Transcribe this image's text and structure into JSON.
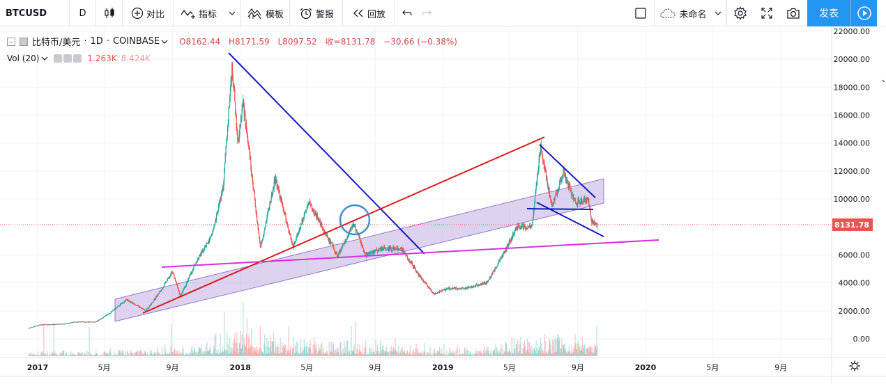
{
  "toolbar": {
    "symbol": "BTCUSD",
    "interval": "D",
    "compare_label": "对比",
    "indicators_label": "指标",
    "templates_label": "模板",
    "alert_label": "警报",
    "replay_label": "回放",
    "layout_name": "未命名",
    "publish_label": "发表"
  },
  "legend": {
    "title": "比特币/美元",
    "interval": "1D",
    "exchange": "COINBASE",
    "open": "O8162.44",
    "high": "H8171.59",
    "low": "L8097.52",
    "close": "收=8131.78",
    "change": "−30.66 (−0.38%)",
    "vol_label": "Vol (20)",
    "vol_value1": "1.263K",
    "vol_value2": "8.424K"
  },
  "price_axis": {
    "labels": [
      "22000.00",
      "20000.00",
      "18000.00",
      "16000.00",
      "14000.00",
      "12000.00",
      "10000.00",
      "8000.00",
      "6000.00",
      "4000.00",
      "2000.00",
      "0.00"
    ],
    "current_price": "8131.78"
  },
  "time_axis": {
    "labels": [
      "2017",
      "5月",
      "9月",
      "2018",
      "5月",
      "9月",
      "2019",
      "5月",
      "9月",
      "2020",
      "5月",
      "9月"
    ]
  },
  "colors": {
    "up": "#26a69a",
    "down": "#ef5350",
    "channel_fill": "#b39ddb",
    "red_trend": "#e0161b",
    "blue_trend": "#0f1bc0",
    "magenta_line": "#d62fdc",
    "circle": "#3d8fc7",
    "price_tag": "#ef5350",
    "accent": "#2196f3"
  },
  "chart_data": {
    "type": "candlestick",
    "symbol": "BTCUSD",
    "ylim": [
      0,
      22000
    ],
    "current_price": 8131.78,
    "price_points": [
      [
        "2016-12-15",
        750
      ],
      [
        "2017-01-05",
        1000
      ],
      [
        "2017-02-15",
        1050
      ],
      [
        "2017-03-10",
        1200
      ],
      [
        "2017-04-15",
        1200
      ],
      [
        "2017-05-10",
        1800
      ],
      [
        "2017-06-10",
        2800
      ],
      [
        "2017-07-15",
        2000
      ],
      [
        "2017-08-10",
        3400
      ],
      [
        "2017-09-01",
        4800
      ],
      [
        "2017-09-15",
        3000
      ],
      [
        "2017-10-15",
        5600
      ],
      [
        "2017-11-10",
        7300
      ],
      [
        "2017-12-01",
        10800
      ],
      [
        "2017-12-17",
        19500
      ],
      [
        "2017-12-28",
        14000
      ],
      [
        "2018-01-06",
        17000
      ],
      [
        "2018-02-06",
        6500
      ],
      [
        "2018-03-05",
        11500
      ],
      [
        "2018-04-06",
        6600
      ],
      [
        "2018-05-05",
        9800
      ],
      [
        "2018-06-25",
        5900
      ],
      [
        "2018-07-25",
        8200
      ],
      [
        "2018-08-14",
        6000
      ],
      [
        "2018-09-15",
        6500
      ],
      [
        "2018-10-20",
        6400
      ],
      [
        "2018-11-20",
        4500
      ],
      [
        "2018-12-15",
        3200
      ],
      [
        "2019-01-10",
        3600
      ],
      [
        "2019-02-10",
        3600
      ],
      [
        "2019-03-20",
        4000
      ],
      [
        "2019-04-05",
        5000
      ],
      [
        "2019-05-15",
        8000
      ],
      [
        "2019-06-10",
        8000
      ],
      [
        "2019-06-26",
        13800
      ],
      [
        "2019-07-16",
        9400
      ],
      [
        "2019-08-06",
        12000
      ],
      [
        "2019-08-28",
        9700
      ],
      [
        "2019-09-20",
        10000
      ],
      [
        "2019-09-25",
        8500
      ],
      [
        "2019-10-06",
        8131
      ]
    ],
    "volume_max": 20000
  }
}
